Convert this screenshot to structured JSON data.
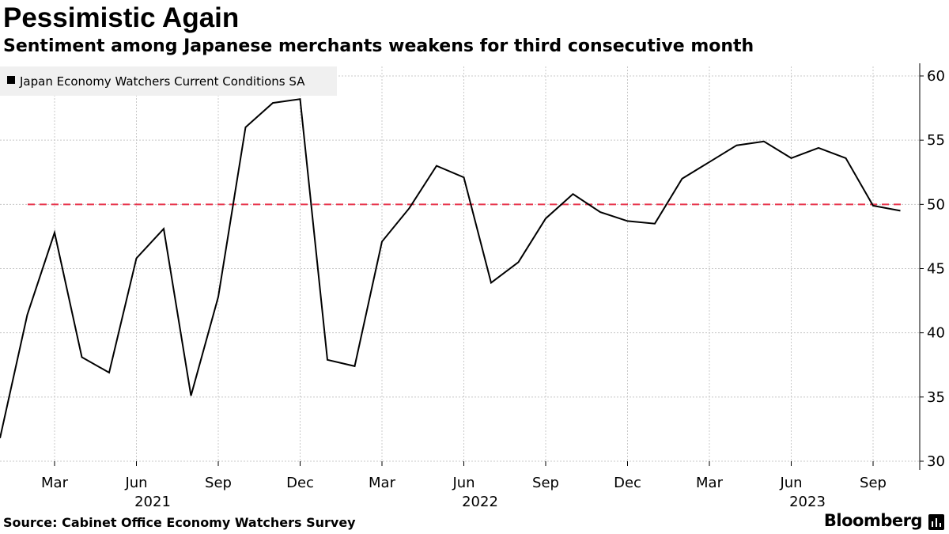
{
  "title": "Pessimistic Again",
  "subtitle": "Sentiment among Japanese merchants weakens for third consecutive month",
  "source": "Source: Cabinet Office Economy Watchers Survey",
  "brand": "Bloomberg",
  "colors": {
    "line": "#000000",
    "reference": "#e8384f",
    "grid": "#c8c8c8",
    "legend_bg": "#f0f0f0"
  },
  "chart_data": {
    "type": "line",
    "title": "Pessimistic Again",
    "xlabel": "",
    "ylabel": "",
    "ylim": [
      30,
      60
    ],
    "y_ticks": [
      "30",
      "35",
      "40",
      "45",
      "50",
      "55",
      "60"
    ],
    "reference_line": 50,
    "legend": "Japan Economy Watchers Current Conditions SA",
    "x_ticks": [
      {
        "index": 2,
        "label": "Mar",
        "year": "2021"
      },
      {
        "index": 5,
        "label": "Jun"
      },
      {
        "index": 8,
        "label": "Sep"
      },
      {
        "index": 11,
        "label": "Dec"
      },
      {
        "index": 14,
        "label": "Mar",
        "year": "2022"
      },
      {
        "index": 17,
        "label": "Jun"
      },
      {
        "index": 20,
        "label": "Sep"
      },
      {
        "index": 23,
        "label": "Dec"
      },
      {
        "index": 26,
        "label": "Mar",
        "year": "2023"
      },
      {
        "index": 29,
        "label": "Jun"
      },
      {
        "index": 32,
        "label": "Sep"
      }
    ],
    "x_labels_monthly": [
      "Jan 2021",
      "Feb 2021",
      "Mar 2021",
      "Apr 2021",
      "May 2021",
      "Jun 2021",
      "Jul 2021",
      "Aug 2021",
      "Sep 2021",
      "Oct 2021",
      "Nov 2021",
      "Dec 2021",
      "Jan 2022",
      "Feb 2022",
      "Mar 2022",
      "Apr 2022",
      "May 2022",
      "Jun 2022",
      "Jul 2022",
      "Aug 2022",
      "Sep 2022",
      "Oct 2022",
      "Nov 2022",
      "Dec 2022",
      "Jan 2023",
      "Feb 2023",
      "Mar 2023",
      "Apr 2023",
      "May 2023",
      "Jun 2023",
      "Jul 2023",
      "Aug 2023",
      "Sep 2023",
      "Oct 2023"
    ],
    "series": [
      {
        "name": "Japan Economy Watchers Current Conditions SA",
        "values": [
          31.8,
          41.4,
          47.8,
          38.1,
          36.9,
          45.8,
          48.1,
          35.1,
          42.8,
          56.0,
          57.9,
          58.2,
          37.9,
          37.4,
          47.1,
          49.7,
          53.0,
          52.1,
          43.9,
          45.5,
          48.9,
          50.8,
          49.4,
          48.7,
          48.5,
          52.0,
          53.3,
          54.6,
          54.9,
          53.6,
          54.4,
          53.6,
          49.9,
          49.5
        ]
      }
    ]
  }
}
